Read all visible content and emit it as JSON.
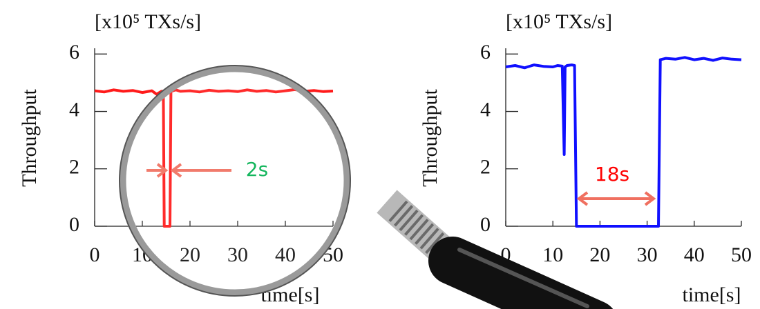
{
  "chart_data": [
    {
      "type": "line",
      "y_unit": "[x10⁵ TXs/s]",
      "y_label": "Throughput",
      "x_label": "time[s]",
      "color": "#ff1a1a",
      "xlim": [
        0,
        50
      ],
      "ylim": [
        0,
        6.2
      ],
      "xticks": [
        0,
        10,
        20,
        30,
        40,
        50
      ],
      "yticks": [
        0,
        2,
        4,
        6
      ],
      "x": [
        0,
        2,
        4,
        6,
        8,
        10,
        12,
        13,
        14,
        14.4,
        14.6,
        15.8,
        16,
        17,
        18,
        20,
        22,
        24,
        26,
        28,
        30,
        32,
        34,
        36,
        38,
        40,
        42,
        44,
        46,
        48,
        50
      ],
      "values": [
        4.72,
        4.68,
        4.75,
        4.7,
        4.73,
        4.66,
        4.72,
        4.6,
        4.7,
        4.7,
        0,
        0,
        4.7,
        4.75,
        4.7,
        4.72,
        4.68,
        4.74,
        4.7,
        4.72,
        4.69,
        4.75,
        4.7,
        4.73,
        4.68,
        4.72,
        4.76,
        4.7,
        4.73,
        4.69,
        4.71
      ],
      "annotations": [
        {
          "text": "2s",
          "color": "#00b050"
        }
      ]
    },
    {
      "type": "line",
      "y_unit": "[x10⁵ TXs/s]",
      "y_label": "Throughput",
      "x_label": "time[s]",
      "color": "#1010ff",
      "xlim": [
        0,
        50
      ],
      "ylim": [
        0,
        6.2
      ],
      "xticks": [
        0,
        10,
        20,
        30,
        40,
        50
      ],
      "yticks": [
        0,
        2,
        4,
        6
      ],
      "x": [
        0,
        2,
        4,
        6,
        8,
        10,
        11,
        12,
        12.4,
        12.6,
        13,
        14,
        14.6,
        15,
        20,
        25,
        30,
        32.4,
        32.8,
        34,
        36,
        38,
        40,
        42,
        44,
        46,
        48,
        50
      ],
      "values": [
        5.55,
        5.6,
        5.52,
        5.62,
        5.57,
        5.55,
        5.6,
        5.58,
        2.5,
        5.55,
        5.6,
        5.62,
        5.6,
        0,
        0,
        0,
        0,
        0,
        5.8,
        5.85,
        5.82,
        5.88,
        5.8,
        5.85,
        5.78,
        5.86,
        5.82,
        5.8
      ],
      "annotations": [
        {
          "text": "18s",
          "color": "#ff0000"
        }
      ]
    }
  ]
}
